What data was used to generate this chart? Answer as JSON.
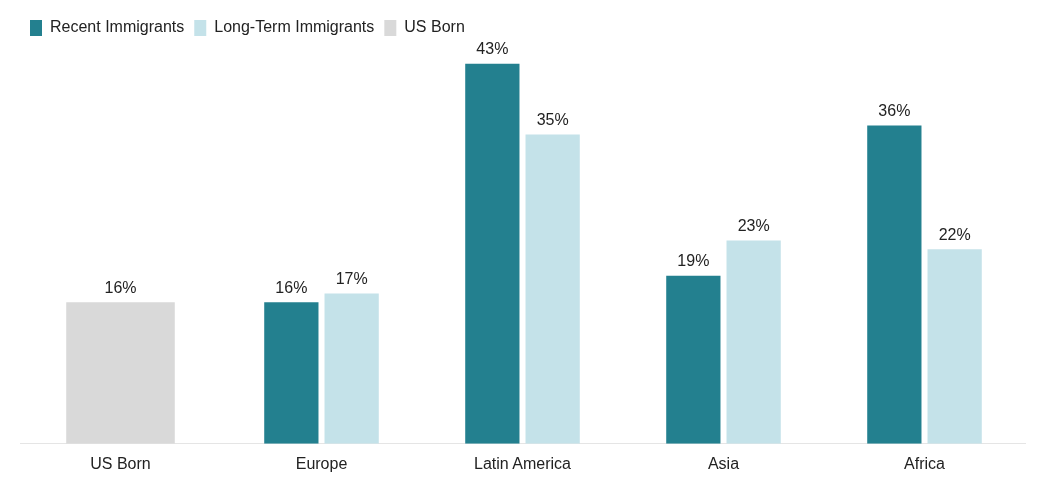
{
  "chart_data": {
    "type": "bar",
    "categories": [
      "US Born",
      "Europe",
      "Latin America",
      "Asia",
      "Africa"
    ],
    "series": [
      {
        "name": "Recent Immigrants",
        "color": "#23808f",
        "values": [
          null,
          16,
          43,
          19,
          36
        ],
        "value_labels": [
          null,
          "16%",
          "43%",
          "19%",
          "36%"
        ]
      },
      {
        "name": "Long-Term Immigrants",
        "color": "#c4e2e9",
        "values": [
          null,
          17,
          35,
          23,
          22
        ],
        "value_labels": [
          null,
          "17%",
          "35%",
          "23%",
          "22%"
        ]
      },
      {
        "name": "US Born",
        "color": "#d9d9d9",
        "values": [
          16,
          null,
          null,
          null,
          null
        ],
        "value_labels": [
          "16%",
          null,
          null,
          null,
          null
        ]
      }
    ],
    "legend": "top left",
    "grid": false
  }
}
